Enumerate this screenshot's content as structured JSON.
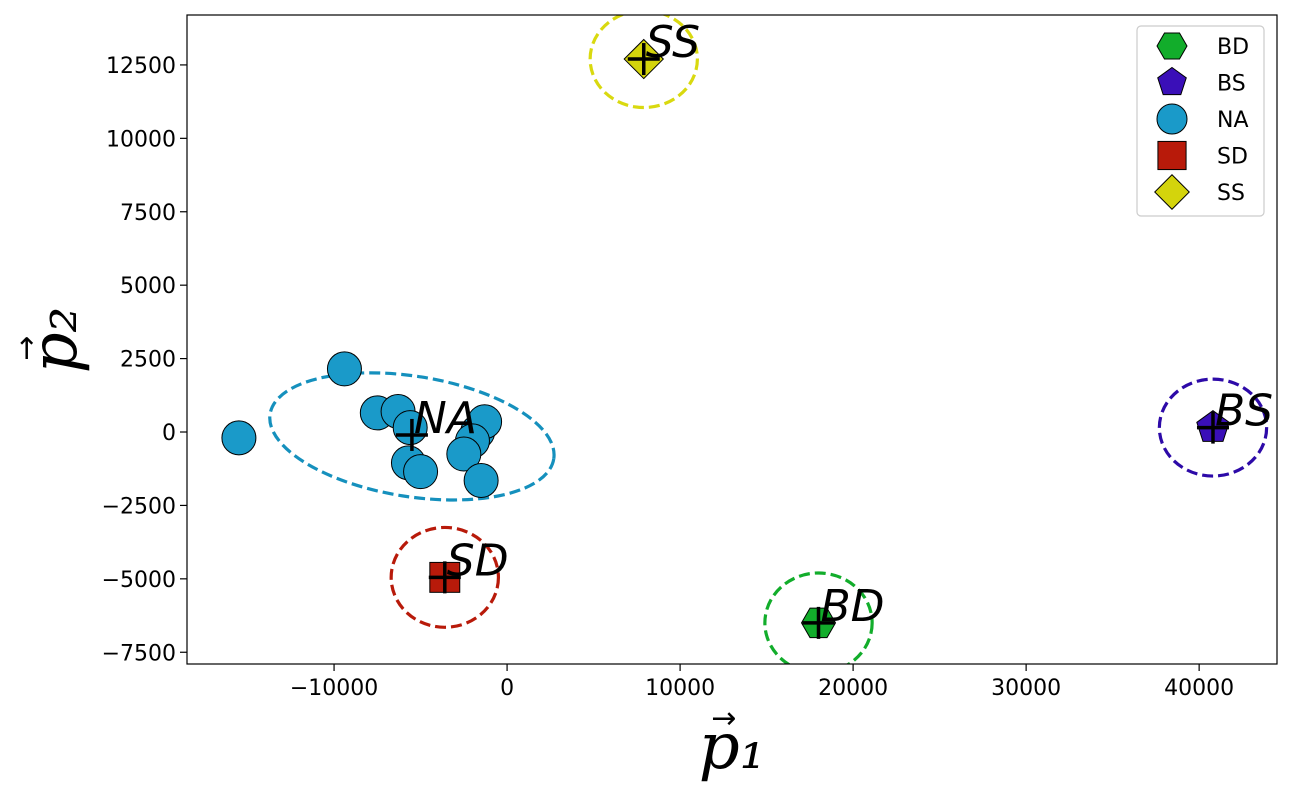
{
  "chart_data": {
    "type": "scatter",
    "xlabel": "p₁",
    "ylabel": "p₂",
    "xlim": [
      -18500,
      44500
    ],
    "ylim": [
      -7900,
      14200
    ],
    "xticks": [
      -10000,
      0,
      10000,
      20000,
      30000,
      40000
    ],
    "yticks": [
      -7500,
      -5000,
      -2500,
      0,
      2500,
      5000,
      7500,
      10000,
      12500
    ],
    "xtick_labels": [
      "−10000",
      "0",
      "10000",
      "20000",
      "30000",
      "40000"
    ],
    "ytick_labels": [
      "−7500",
      "−5000",
      "−2500",
      "0",
      "2500",
      "5000",
      "7500",
      "10000",
      "12500"
    ],
    "legend_position": "top-right",
    "series": [
      {
        "name": "BD",
        "marker": "hexagon",
        "color": "#12ad2b",
        "points": [
          [
            18000,
            -6500
          ]
        ],
        "centroid": [
          18000,
          -6500
        ],
        "label": "BD",
        "ellipse": {
          "cx": 18000,
          "cy": -6500,
          "rx": 3100,
          "ry": 1700,
          "angle": 0
        }
      },
      {
        "name": "BS",
        "marker": "pentagon",
        "color": "#3a0fb8",
        "points": [
          [
            40800,
            150
          ]
        ],
        "centroid": [
          40800,
          150
        ],
        "label": "BS",
        "ellipse": {
          "cx": 40800,
          "cy": 150,
          "rx": 3100,
          "ry": 1650,
          "angle": 0
        }
      },
      {
        "name": "NA",
        "marker": "circle",
        "color": "#1a9ac9",
        "points": [
          [
            -15500,
            -200
          ],
          [
            -9400,
            2150
          ],
          [
            -7500,
            650
          ],
          [
            -6300,
            700
          ],
          [
            -5600,
            150
          ],
          [
            -5700,
            -1050
          ],
          [
            -5000,
            -1350
          ],
          [
            -1700,
            0
          ],
          [
            -1300,
            350
          ],
          [
            -2000,
            -300
          ],
          [
            -2500,
            -750
          ],
          [
            -1500,
            -1650
          ]
        ],
        "centroid": [
          -5500,
          -100
        ],
        "label": "NA",
        "ellipse": {
          "cx": -5500,
          "cy": -150,
          "rx": 8300,
          "ry": 2050,
          "angle": -9
        }
      },
      {
        "name": "SD",
        "marker": "square",
        "color": "#b81a0a",
        "points": [
          [
            -3600,
            -4950
          ]
        ],
        "centroid": [
          -3600,
          -4950
        ],
        "label": "SD",
        "ellipse": {
          "cx": -3600,
          "cy": -4950,
          "rx": 3100,
          "ry": 1700,
          "angle": 0
        }
      },
      {
        "name": "SS",
        "marker": "diamond",
        "color": "#d4d40c",
        "points": [
          [
            7900,
            12700
          ]
        ],
        "centroid": [
          7900,
          12700
        ],
        "label": "SS",
        "ellipse": {
          "cx": 7900,
          "cy": 12700,
          "rx": 3100,
          "ry": 1650,
          "angle": 0
        }
      }
    ]
  },
  "colors": {
    "BD_ellipse": "#12ad2b",
    "BS_ellipse": "#2d0aa8",
    "NA_ellipse": "#1590bd",
    "SD_ellipse": "#b81a0a",
    "SS_ellipse": "#d9d90f"
  }
}
